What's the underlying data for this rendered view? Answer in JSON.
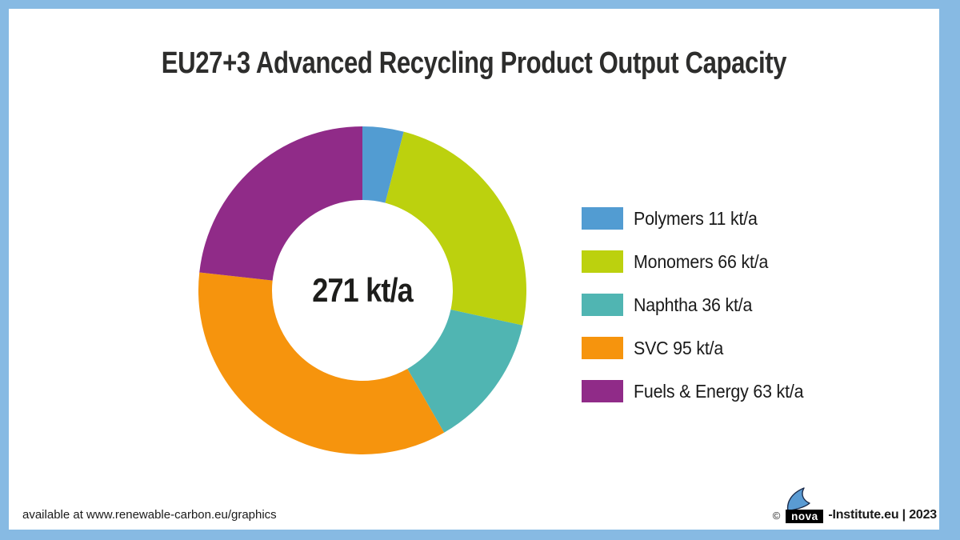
{
  "frame": {
    "border_color": "#87BAE3",
    "background_color": "#FFFFFF"
  },
  "title": "EU27+3 Advanced Recycling Product Output Capacity",
  "chart_data": {
    "type": "pie",
    "subtype": "donut",
    "title": "EU27+3 Advanced Recycling Product Output Capacity",
    "center_label": "271 kt/a",
    "total": 271,
    "unit": "kt/a",
    "start_angle_deg": 0,
    "direction": "clockwise",
    "legend_position": "right",
    "outer_radius_px": 205,
    "inner_radius_px": 113,
    "segments": [
      {
        "label": "Polymers",
        "value": 11,
        "color": "#529CD2",
        "legend_text": "Polymers 11 kt/a"
      },
      {
        "label": "Monomers",
        "value": 66,
        "color": "#BCD10E",
        "legend_text": "Monomers 66 kt/a"
      },
      {
        "label": "Naphtha",
        "value": 36,
        "color": "#50B5B2",
        "legend_text": "Naphtha 36 kt/a"
      },
      {
        "label": "SVC",
        "value": 95,
        "color": "#F6940D",
        "legend_text": "SVC 95 kt/a"
      },
      {
        "label": "Fuels & Energy",
        "value": 63,
        "color": "#902B88",
        "legend_text": "Fuels & Energy 63 kt/a"
      }
    ]
  },
  "footer": {
    "availability_text": "available at www.renewable-carbon.eu/graphics",
    "copyright_symbol": "©",
    "logo_text": "nova",
    "credit_text": "-Institute.eu | 2023"
  },
  "logo": {
    "sail_color": "#5A9BD3",
    "sail_outline_color": "#1B2B4A",
    "box_color": "#000000",
    "box_text_color": "#FFFFFF"
  }
}
